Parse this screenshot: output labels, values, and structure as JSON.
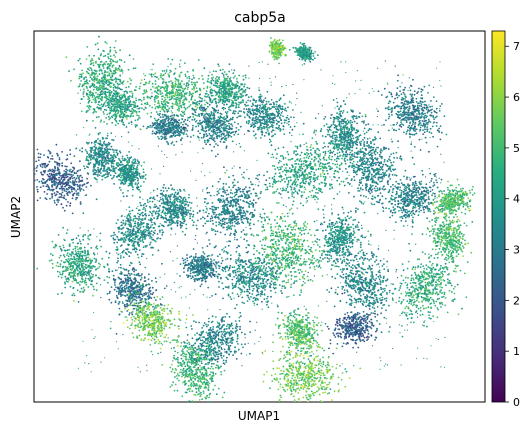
{
  "chart_data": {
    "type": "scatter",
    "title": "cabp5a",
    "xlabel": "UMAP1",
    "ylabel": "UMAP2",
    "x_ticks_shown": false,
    "y_ticks_shown": false,
    "grid": false,
    "colormap": "viridis",
    "colorbar": {
      "range": [
        0,
        7.3
      ],
      "ticks": [
        "0",
        "1",
        "2",
        "3",
        "4",
        "5",
        "6",
        "7"
      ],
      "placement": "right"
    },
    "clusters": [
      {
        "x": 0.15,
        "y": 0.87,
        "size": 0.07,
        "value": 4.6
      },
      {
        "x": 0.43,
        "y": 0.84,
        "size": 0.05,
        "value": 4.2
      },
      {
        "x": 0.54,
        "y": 0.95,
        "size": 0.02,
        "value": 5.7
      },
      {
        "x": 0.6,
        "y": 0.94,
        "size": 0.02,
        "value": 4.0
      },
      {
        "x": 0.19,
        "y": 0.8,
        "size": 0.06,
        "value": 4.3
      },
      {
        "x": 0.31,
        "y": 0.83,
        "size": 0.08,
        "value": 4.8
      },
      {
        "x": 0.3,
        "y": 0.74,
        "size": 0.04,
        "value": 3.0
      },
      {
        "x": 0.4,
        "y": 0.75,
        "size": 0.06,
        "value": 3.2
      },
      {
        "x": 0.51,
        "y": 0.77,
        "size": 0.06,
        "value": 3.4
      },
      {
        "x": 0.69,
        "y": 0.72,
        "size": 0.06,
        "value": 3.6
      },
      {
        "x": 0.84,
        "y": 0.78,
        "size": 0.07,
        "value": 3.1
      },
      {
        "x": 0.75,
        "y": 0.63,
        "size": 0.08,
        "value": 3.3
      },
      {
        "x": 0.6,
        "y": 0.62,
        "size": 0.09,
        "value": 4.3
      },
      {
        "x": 0.44,
        "y": 0.52,
        "size": 0.08,
        "value": 3.2
      },
      {
        "x": 0.31,
        "y": 0.52,
        "size": 0.05,
        "value": 3.4
      },
      {
        "x": 0.23,
        "y": 0.46,
        "size": 0.07,
        "value": 3.6
      },
      {
        "x": 0.1,
        "y": 0.37,
        "size": 0.07,
        "value": 4.4
      },
      {
        "x": 0.22,
        "y": 0.3,
        "size": 0.06,
        "value": 2.8
      },
      {
        "x": 0.4,
        "y": 0.16,
        "size": 0.07,
        "value": 3.3
      },
      {
        "x": 0.48,
        "y": 0.34,
        "size": 0.08,
        "value": 3.5
      },
      {
        "x": 0.56,
        "y": 0.41,
        "size": 0.09,
        "value": 4.9
      },
      {
        "x": 0.68,
        "y": 0.44,
        "size": 0.06,
        "value": 3.7
      },
      {
        "x": 0.73,
        "y": 0.32,
        "size": 0.08,
        "value": 3.4
      },
      {
        "x": 0.87,
        "y": 0.31,
        "size": 0.08,
        "value": 4.6
      },
      {
        "x": 0.92,
        "y": 0.44,
        "size": 0.05,
        "value": 5.0
      },
      {
        "x": 0.26,
        "y": 0.22,
        "size": 0.06,
        "value": 5.7
      },
      {
        "x": 0.37,
        "y": 0.36,
        "size": 0.04,
        "value": 3.0
      },
      {
        "x": 0.71,
        "y": 0.2,
        "size": 0.05,
        "value": 2.2
      },
      {
        "x": 0.59,
        "y": 0.19,
        "size": 0.05,
        "value": 5.2
      },
      {
        "x": 0.6,
        "y": 0.07,
        "size": 0.08,
        "value": 5.6
      },
      {
        "x": 0.36,
        "y": 0.08,
        "size": 0.07,
        "value": 4.8
      },
      {
        "x": 0.06,
        "y": 0.6,
        "size": 0.07,
        "value": 2.2
      },
      {
        "x": 0.84,
        "y": 0.55,
        "size": 0.06,
        "value": 3.2
      },
      {
        "x": 0.93,
        "y": 0.54,
        "size": 0.04,
        "value": 5.2
      },
      {
        "x": 0.21,
        "y": 0.62,
        "size": 0.04,
        "value": 3.8
      },
      {
        "x": 0.15,
        "y": 0.66,
        "size": 0.05,
        "value": 3.5
      }
    ]
  }
}
